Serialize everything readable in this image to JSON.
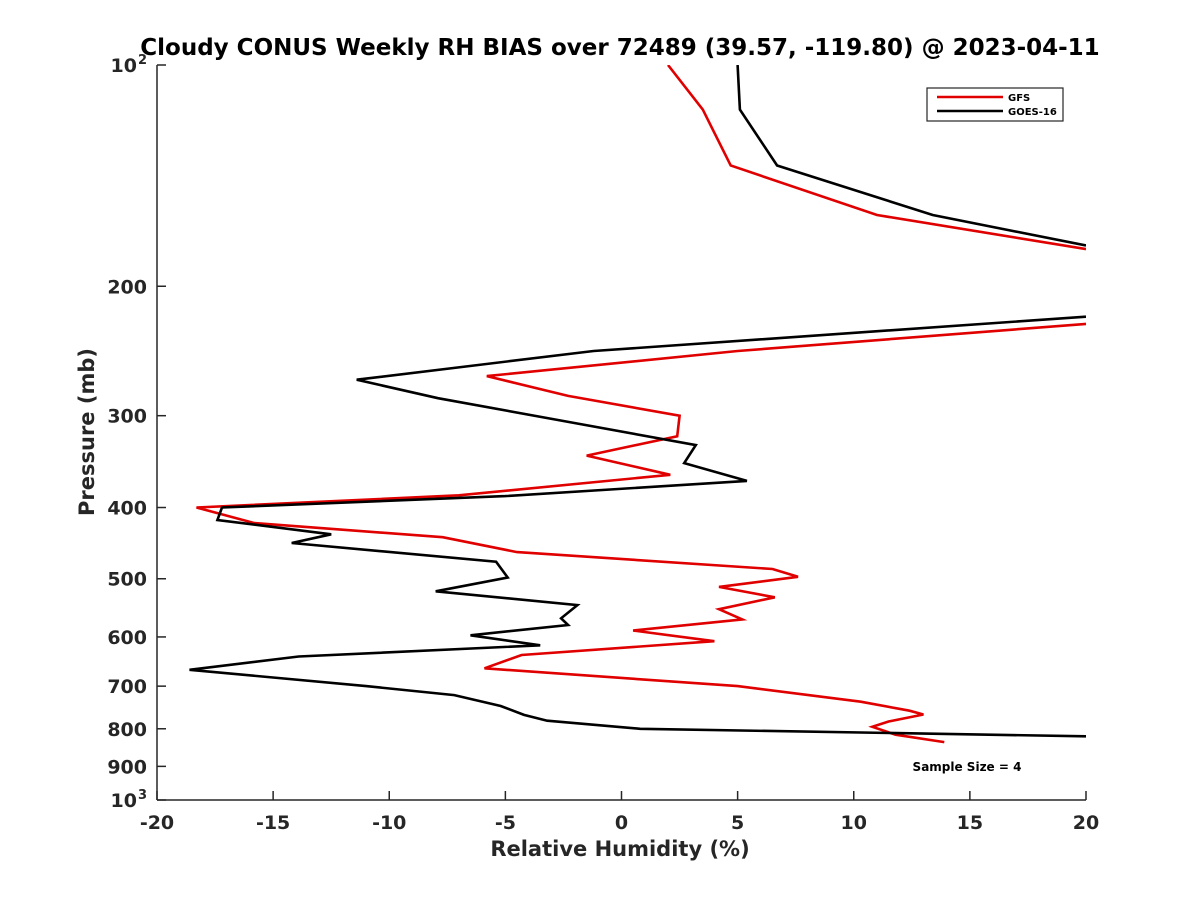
{
  "chart_data": {
    "type": "line",
    "title": "Cloudy CONUS Weekly RH BIAS over 72489 (39.57, -119.80) @ 2023-04-11",
    "xlabel": "Relative Humidity (%)",
    "ylabel": "Pressure (mb)",
    "xlim": [
      -20,
      20
    ],
    "ylim": [
      100,
      1000
    ],
    "y_scale": "log",
    "y_reversed": true,
    "x_ticks": [
      "-20",
      "-15",
      "-10",
      "-5",
      "0",
      "5",
      "10",
      "15",
      "20"
    ],
    "y_ticks": [
      {
        "value": 100,
        "label": "10",
        "sup": "2"
      },
      {
        "value": 200,
        "label": "200"
      },
      {
        "value": 300,
        "label": "300"
      },
      {
        "value": 400,
        "label": "400"
      },
      {
        "value": 500,
        "label": "500"
      },
      {
        "value": 600,
        "label": "600"
      },
      {
        "value": 700,
        "label": "700"
      },
      {
        "value": 800,
        "label": "800"
      },
      {
        "value": 900,
        "label": "900"
      },
      {
        "value": 1000,
        "label": "10",
        "sup": "3"
      }
    ],
    "grid": false,
    "legend_position": "top-right",
    "annotation": "Sample Size = 4",
    "series": [
      {
        "name": "GFS",
        "color": "#e00000",
        "points": [
          [
            2.0,
            100
          ],
          [
            3.5,
            115
          ],
          [
            4.7,
            137
          ],
          [
            11.0,
            160
          ],
          [
            20.0,
            178
          ],
          [
            null,
            null
          ],
          [
            20.0,
            225
          ],
          [
            5.0,
            245
          ],
          [
            -5.8,
            265
          ],
          [
            -2.3,
            282
          ],
          [
            2.5,
            300
          ],
          [
            2.4,
            320
          ],
          [
            -1.5,
            340
          ],
          [
            2.1,
            361
          ],
          [
            -7.0,
            385
          ],
          [
            -18.3,
            400
          ],
          [
            -15.8,
            420
          ],
          [
            -7.7,
            439
          ],
          [
            -4.5,
            460
          ],
          [
            6.5,
            485
          ],
          [
            7.6,
            497
          ],
          [
            4.2,
            513
          ],
          [
            6.6,
            530
          ],
          [
            4.2,
            550
          ],
          [
            5.2,
            568
          ],
          [
            0.5,
            588
          ],
          [
            4.0,
            608
          ],
          [
            -4.3,
            635
          ],
          [
            -5.9,
            662
          ],
          [
            5.0,
            700
          ],
          [
            10.3,
            735
          ],
          [
            12.4,
            756
          ],
          [
            13.0,
            765
          ],
          [
            11.5,
            782
          ],
          [
            10.8,
            795
          ],
          [
            11.8,
            815
          ],
          [
            13.9,
            834
          ]
        ]
      },
      {
        "name": "GOES-16",
        "color": "#000000",
        "points": [
          [
            5.0,
            100
          ],
          [
            5.1,
            115
          ],
          [
            6.7,
            137
          ],
          [
            13.4,
            160
          ],
          [
            20.0,
            176
          ],
          [
            null,
            null
          ],
          [
            20.0,
            220
          ],
          [
            -1.2,
            245
          ],
          [
            -11.4,
            268
          ],
          [
            -7.9,
            284
          ],
          [
            -2.5,
            305
          ],
          [
            3.2,
            329
          ],
          [
            2.7,
            348
          ],
          [
            5.4,
            368
          ],
          [
            -5.0,
            386
          ],
          [
            -17.2,
            400
          ],
          [
            -17.4,
            416
          ],
          [
            -12.5,
            435
          ],
          [
            -14.2,
            447
          ],
          [
            -5.4,
            474
          ],
          [
            -4.9,
            498
          ],
          [
            -8.0,
            520
          ],
          [
            -1.9,
            543
          ],
          [
            -2.6,
            566
          ],
          [
            -2.3,
            578
          ],
          [
            -6.5,
            597
          ],
          [
            -3.5,
            616
          ],
          [
            -13.9,
            638
          ],
          [
            -18.6,
            665
          ],
          [
            -11.0,
            700
          ],
          [
            -7.2,
            720
          ],
          [
            -5.2,
            745
          ],
          [
            -4.2,
            766
          ],
          [
            -3.2,
            780
          ],
          [
            0.8,
            800
          ],
          [
            20.0,
            819
          ]
        ]
      }
    ]
  }
}
